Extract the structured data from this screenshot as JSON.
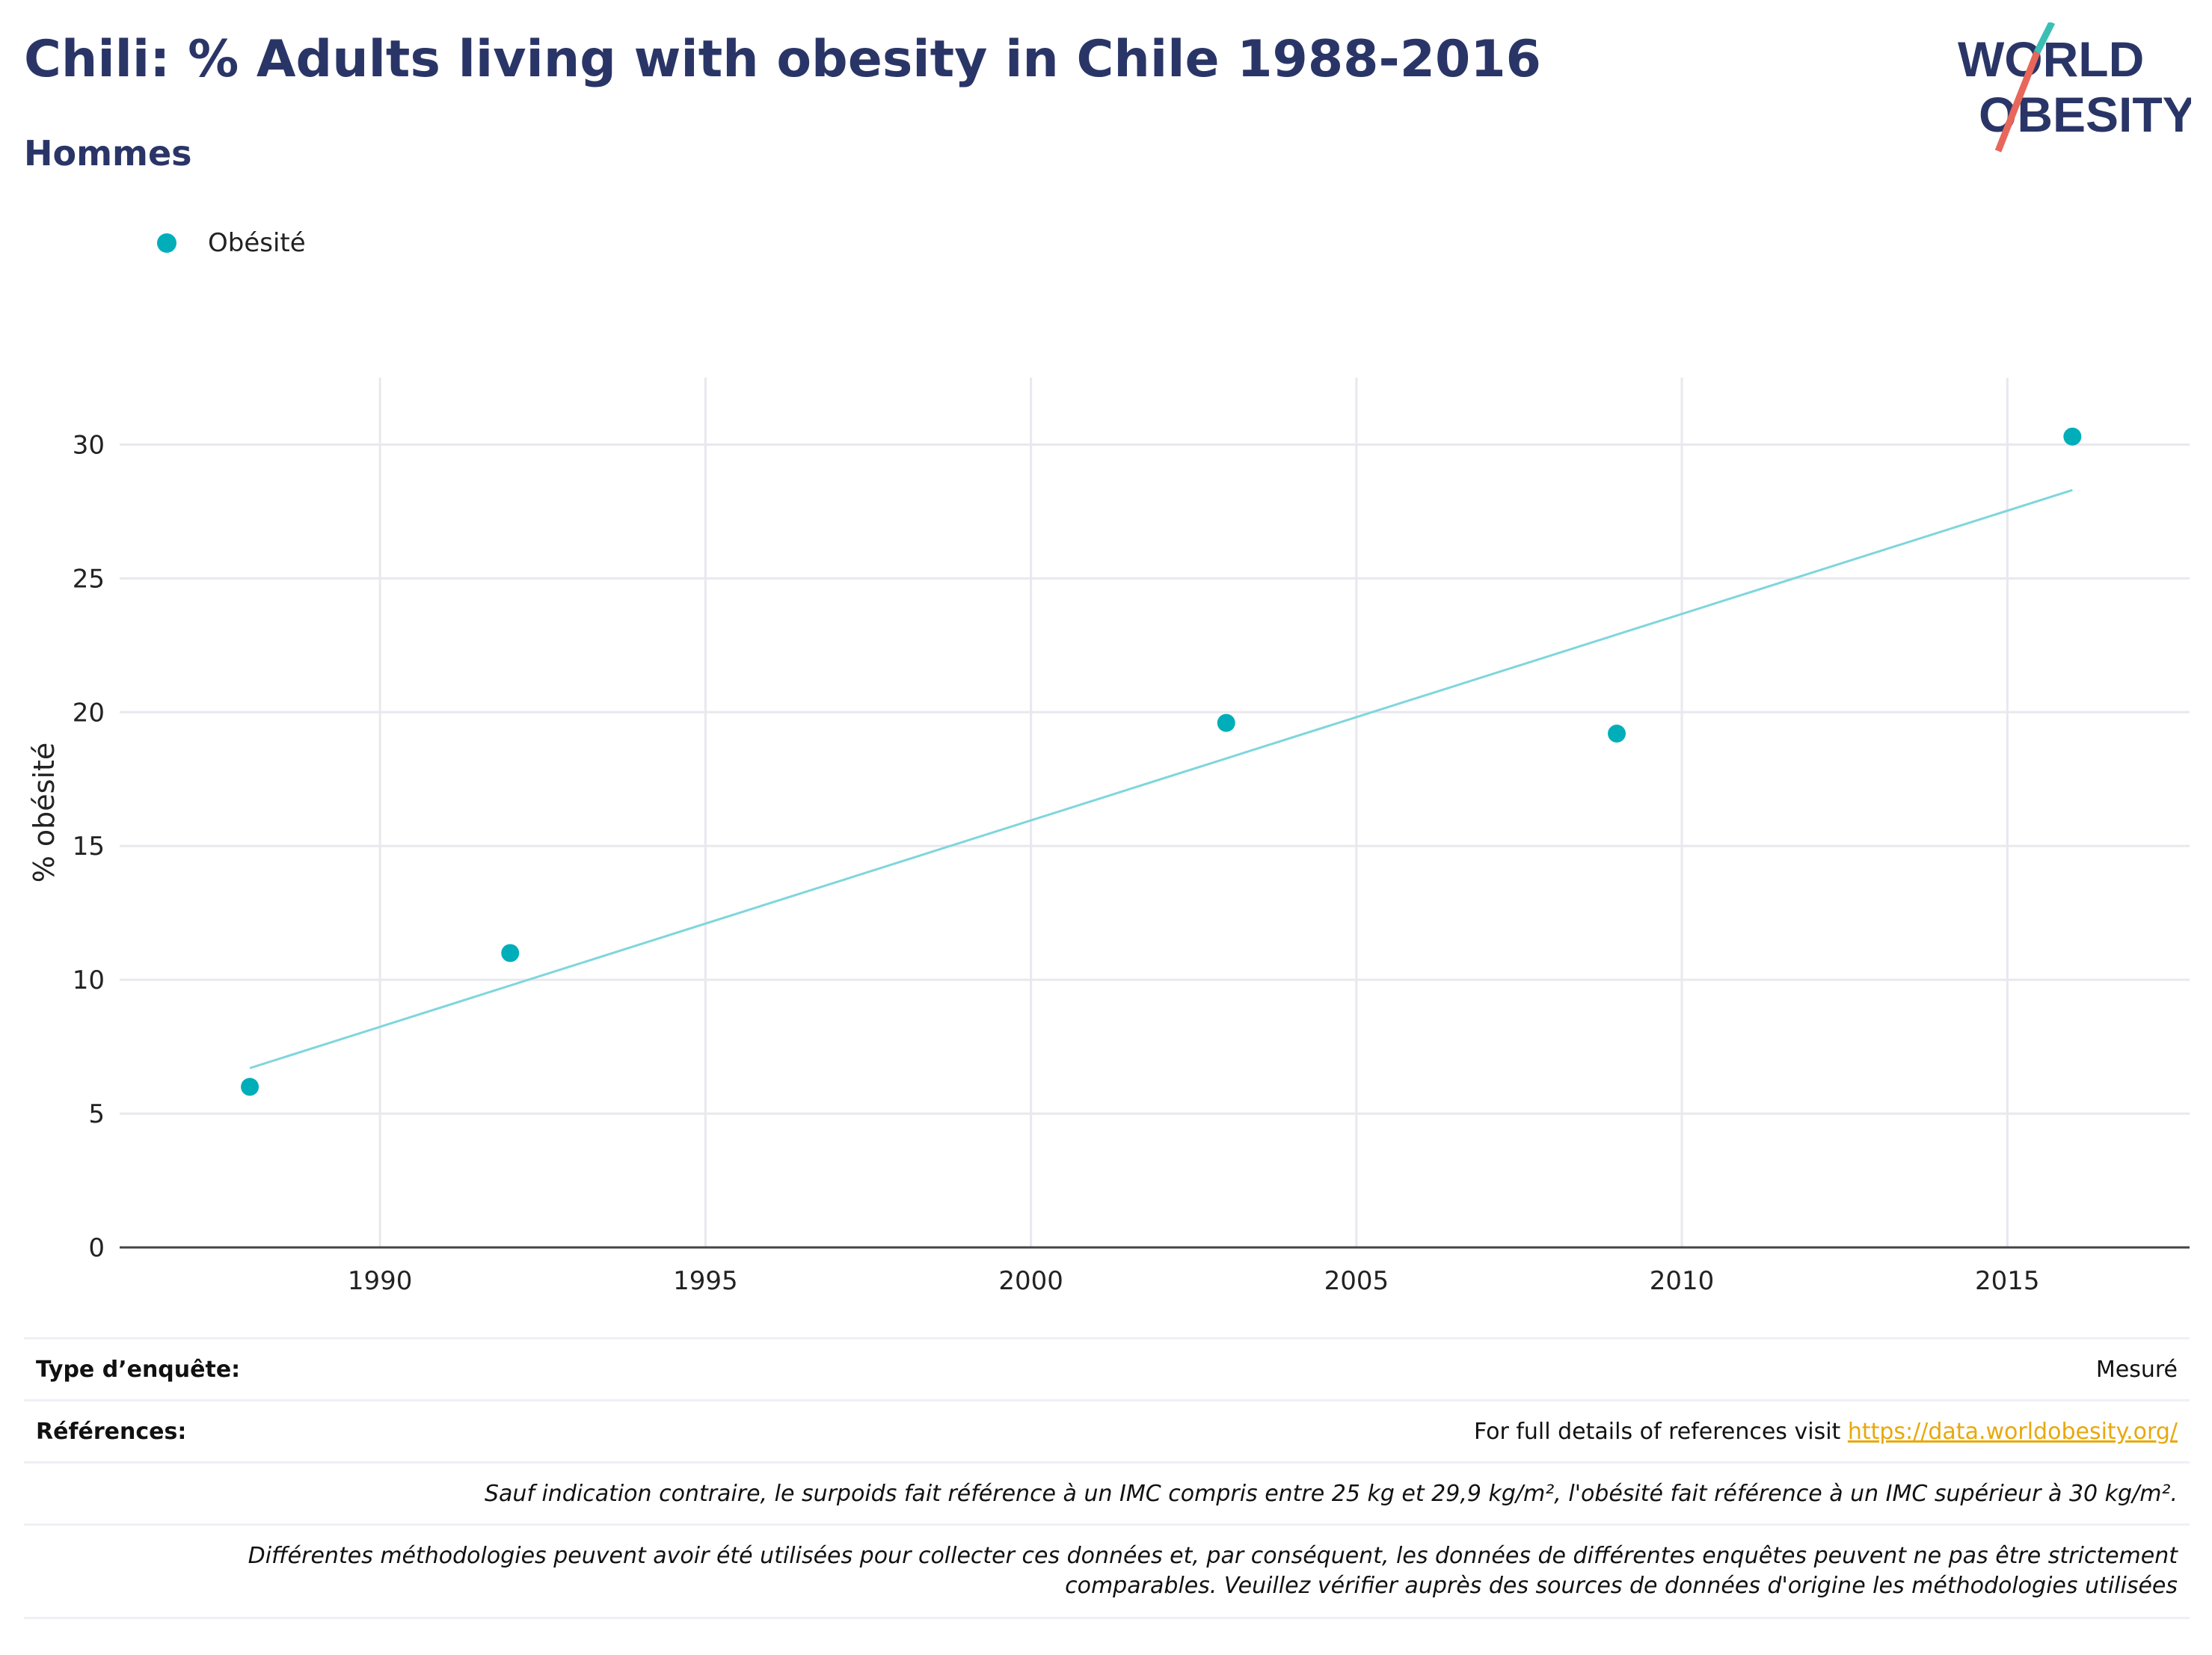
{
  "header": {
    "title": "Chili: % Adults living with obesity in Chile 1988-2016",
    "subtitle": "Hommes",
    "logo_line1": "WORLD",
    "logo_line2": "OBESITY"
  },
  "legend": {
    "label": "Obésité"
  },
  "chart_data": {
    "type": "scatter",
    "series": [
      {
        "name": "Obésité",
        "x": [
          1988,
          1992,
          2003,
          2009,
          2016
        ],
        "y": [
          6.0,
          11.0,
          19.6,
          19.2,
          30.3
        ]
      }
    ],
    "trendline": {
      "x": [
        1988,
        2016
      ],
      "y": [
        6.7,
        28.3
      ]
    },
    "ylabel": "% obésité",
    "xlabel": "",
    "xlim": [
      1986,
      2017.8
    ],
    "ylim": [
      0,
      32.5
    ],
    "xticks": [
      1990,
      1995,
      2000,
      2005,
      2010,
      2015
    ],
    "yticks": [
      0,
      5,
      10,
      15,
      20,
      25,
      30
    ],
    "grid": true,
    "colors": {
      "points": "#00aeb9",
      "trend": "#7fd6dc"
    }
  },
  "footer": {
    "survey_type_label": "Type d’enquête:",
    "survey_type_value": "Mesuré",
    "references_label": "Références:",
    "references_text": "For full details of references visit ",
    "references_link": "https://data.worldobesity.org/",
    "note1": "Sauf indication contraire, le surpoids fait référence à un IMC compris entre 25 kg et 29,9 kg/m², l'obésité fait référence à un IMC supérieur à 30 kg/m².",
    "note2_line1": "Différentes méthodologies peuvent avoir été utilisées pour collecter ces données et, par conséquent, les données de différentes enquêtes peuvent ne pas être strictement",
    "note2_line2": "comparables. Veuillez vérifier auprès des sources de données d'origine les méthodologies utilisées"
  }
}
